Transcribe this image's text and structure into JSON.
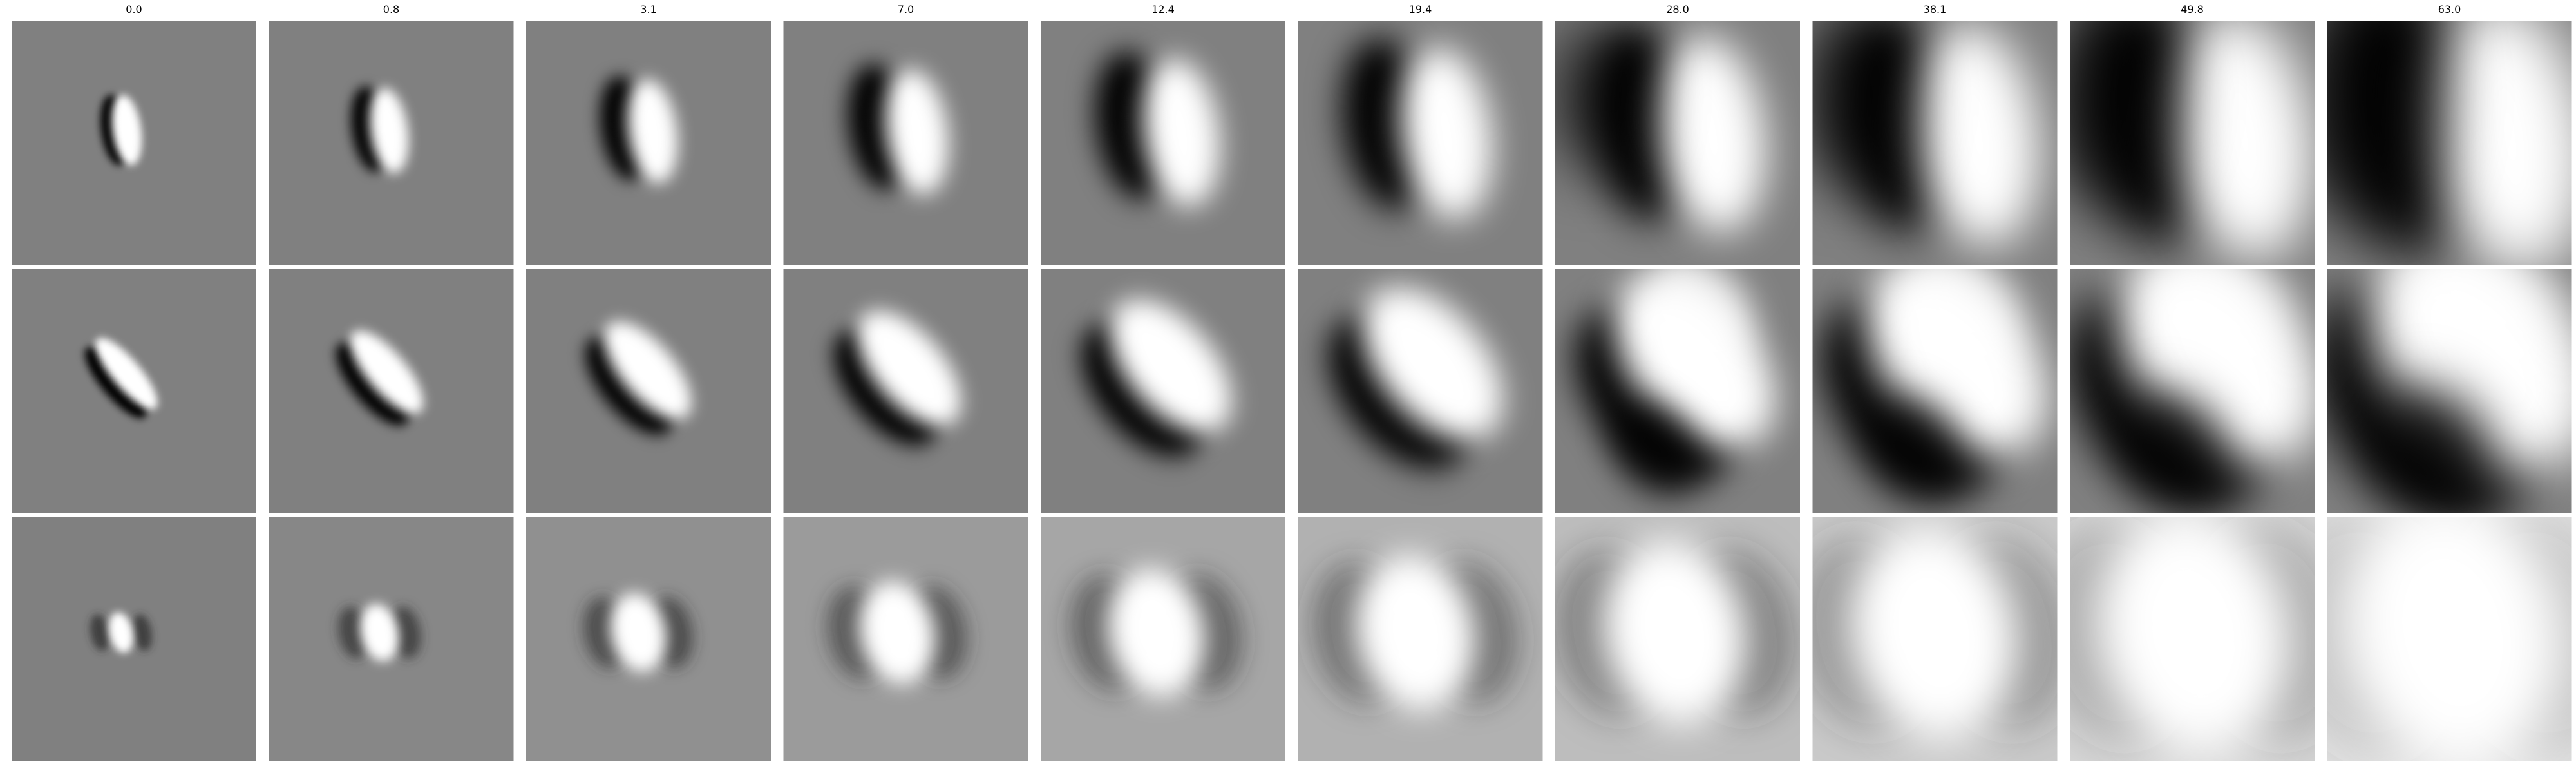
{
  "chart_data": {
    "type": "heatmap",
    "columns": [
      "0.0",
      "0.8",
      "3.1",
      "7.0",
      "12.4",
      "19.4",
      "28.0",
      "38.1",
      "49.8",
      "63.0"
    ],
    "scales": [
      0.0,
      0.8,
      3.1,
      7.0,
      12.4,
      19.4,
      28.0,
      38.1,
      49.8,
      63.0
    ],
    "rows": 3,
    "colormap": "gray",
    "background": "#ffffff",
    "panel_mid_gray": "#808080",
    "title": "",
    "xlabel": "",
    "ylabel": ""
  }
}
